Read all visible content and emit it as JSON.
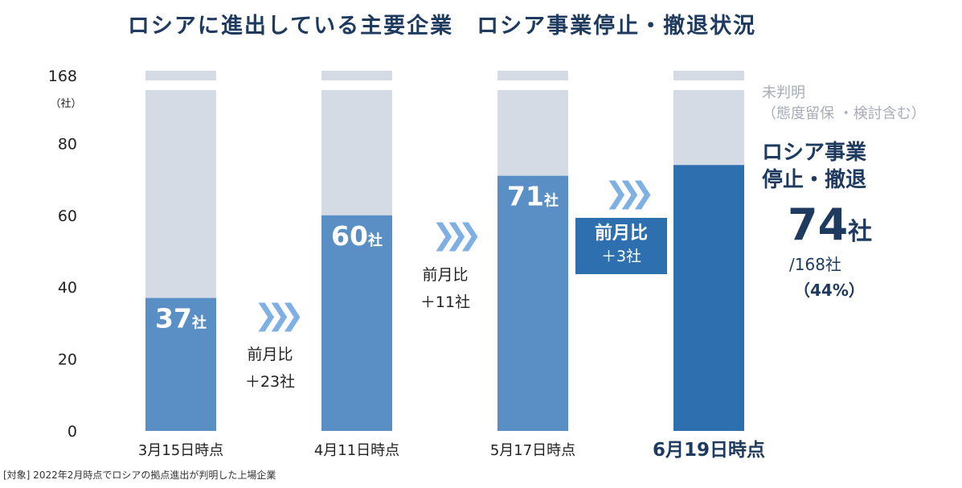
{
  "title": "ロシアに進出している主要企業　ロシア事業停止・撤退状況",
  "chart_data": {
    "type": "bar",
    "categories": [
      "3月15日時点",
      "4月11日時点",
      "5月17日時点",
      "6月19日時点"
    ],
    "series": [
      {
        "name": "ロシア事業停止・撤退",
        "values": [
          37,
          60,
          71,
          74
        ]
      },
      {
        "name": "未判明（態度留保・検討含む）",
        "values": [
          131,
          108,
          97,
          94
        ]
      }
    ],
    "total": 168,
    "bar_labels": [
      "37",
      "60",
      "71",
      ""
    ],
    "label_unit": "社",
    "yticks": [
      0,
      20,
      40,
      60,
      80
    ],
    "ytick_top": "168",
    "ylabel": "（社）",
    "ylim": [
      0,
      168
    ]
  },
  "deltas": [
    {
      "line1": "前月比",
      "line2": "＋23社"
    },
    {
      "line1": "前月比",
      "line2": "＋11社"
    },
    {
      "line1": "前月比",
      "line2": "＋3社"
    }
  ],
  "chevron": "❯❯❯",
  "colors": {
    "stop": "#5a8fc6",
    "stop_latest": "#2e6fb0",
    "unknown": "#d5dbe4"
  },
  "side": {
    "unknown_line1": "未判明",
    "unknown_line2": "（態度留保 ・検討含む）",
    "head_line1": "ロシア事業",
    "head_line2": "停止・撤退",
    "big_number": "74",
    "big_unit": "社",
    "of_total": "/168社",
    "pct": "（44%）"
  },
  "footnote": "[対象] 2022年2月時点でロシアの拠点進出が判明した上場企業"
}
